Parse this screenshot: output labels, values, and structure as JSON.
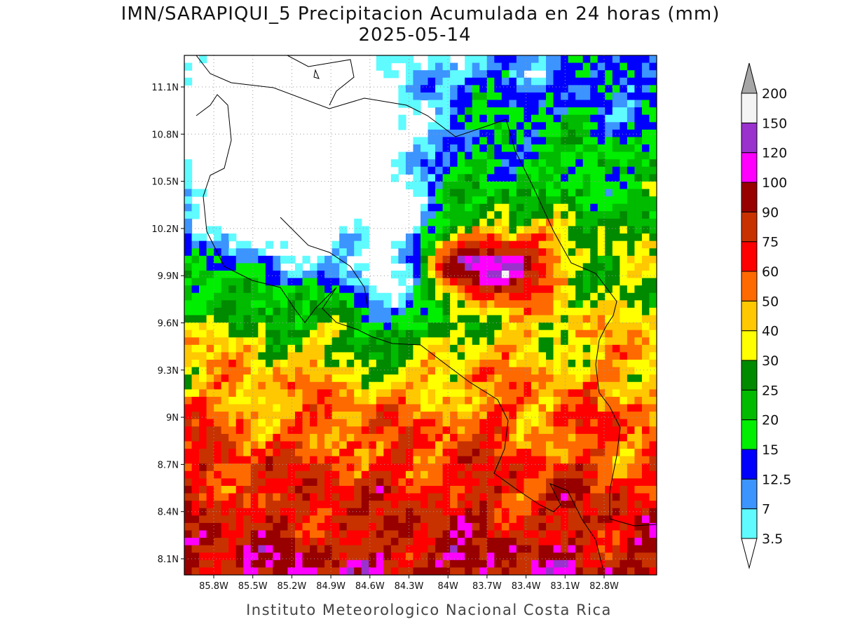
{
  "header": {
    "title": "IMN/SARAPIQUI_5 Precipitacion Acumulada en 24 horas (mm)",
    "subtitle": "2025-05-14"
  },
  "map": {
    "lon_ticks": [
      "85.8W",
      "85.5W",
      "85.2W",
      "84.9W",
      "84.6W",
      "84.3W",
      "84W",
      "83.7W",
      "83.4W",
      "83.1W",
      "82.8W"
    ],
    "lat_ticks": [
      "11.1N",
      "10.8N",
      "10.5N",
      "10.2N",
      "9.9N",
      "9.6N",
      "9.3N",
      "9N",
      "8.7N",
      "8.4N",
      "8.1N"
    ],
    "grid": true
  },
  "colorbar": {
    "levels": [
      3.5,
      7,
      12.5,
      15,
      20,
      25,
      30,
      40,
      50,
      60,
      75,
      90,
      100,
      120,
      150,
      200
    ],
    "colors": [
      "#ffffff",
      "#5ffbff",
      "#3c94ff",
      "#0000ff",
      "#00ee00",
      "#00bb00",
      "#008a00",
      "#ffff00",
      "#ffc800",
      "#ff6a00",
      "#ff0000",
      "#c83200",
      "#980000",
      "#ff00ff",
      "#9a32cd",
      "#f4f4f4",
      "#a6a6a6"
    ]
  },
  "footer": {
    "text": "Instituto Meteorologico Nacional Costa Rica"
  }
}
